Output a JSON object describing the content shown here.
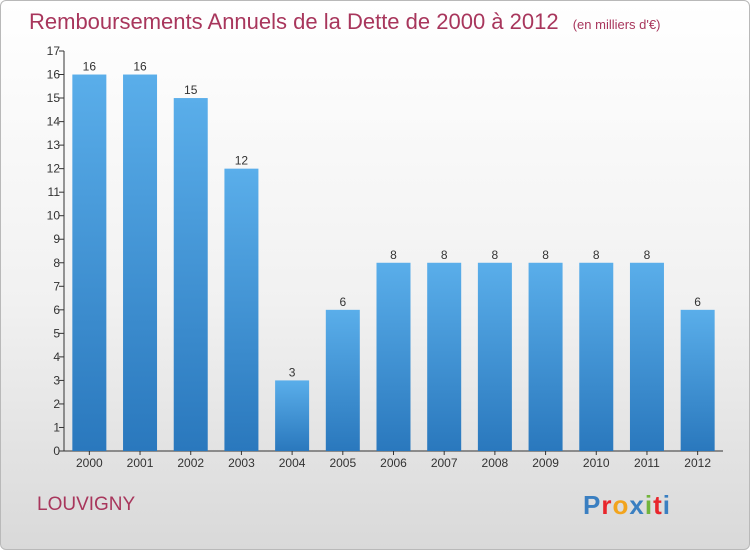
{
  "header": {
    "title": "Remboursements Annuels de la Dette de 2000 à 2012",
    "unit": "(en milliers d'€)"
  },
  "footer": {
    "city": "LOUVIGNY",
    "logo": "Proxiti",
    "logo_colors": [
      "#3a7fc1",
      "#e8262c",
      "#f2a41d",
      "#3a7fc1",
      "#72b43c",
      "#e8262c",
      "#3a7fc1"
    ]
  },
  "chart_data": {
    "type": "bar",
    "title": "Remboursements Annuels de la Dette de 2000 à 2012",
    "xlabel": "",
    "ylabel": "",
    "categories": [
      "2000",
      "2001",
      "2002",
      "2003",
      "2004",
      "2005",
      "2006",
      "2007",
      "2008",
      "2009",
      "2010",
      "2011",
      "2012"
    ],
    "values": [
      16,
      16,
      15,
      12,
      3,
      6,
      8,
      8,
      8,
      8,
      8,
      8,
      6
    ],
    "ylim": [
      0,
      17
    ],
    "yticks": [
      "0",
      "1",
      "2",
      "3",
      "4",
      "5",
      "6",
      "7",
      "8",
      "9",
      "10",
      "11",
      "12",
      "13",
      "14",
      "15",
      "16",
      "17"
    ],
    "grid": false,
    "bar_color_top": "#5aaeea",
    "bar_color_bottom": "#2a78bd"
  }
}
